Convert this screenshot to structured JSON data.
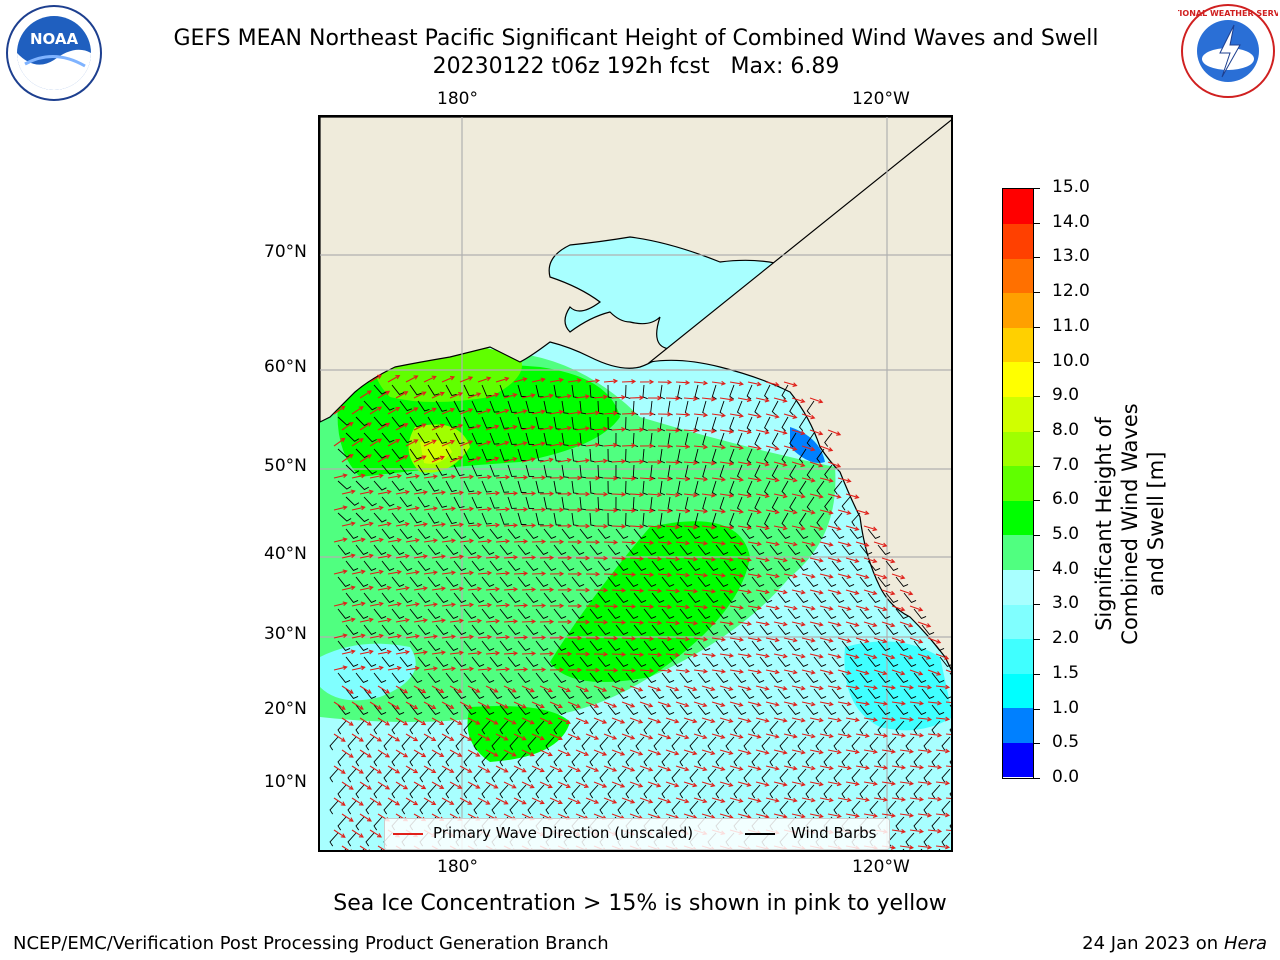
{
  "header": {
    "title_line1": "GEFS MEAN Northeast Pacific Significant Height of Combined Wind Waves and Swell",
    "title_line2": "20230122 t06z 192h fcst   Max: 6.89",
    "left_logo": "NOAA",
    "right_logo": "NATIONAL WEATHER SERVICE"
  },
  "map": {
    "lon_ticks_top": [
      "180°",
      "120°W"
    ],
    "lon_ticks_bottom": [
      "180°",
      "120°W"
    ],
    "lat_ticks": [
      "70°N",
      "60°N",
      "50°N",
      "40°N",
      "30°N",
      "20°N",
      "10°N"
    ],
    "colors": {
      "land": "#efebdb",
      "coast": "#000000",
      "grid": "#b0b0b0",
      "wave_arrow": "#e0201a",
      "wind_barb": "#000000"
    }
  },
  "colorbar": {
    "label": "Significant Height of Combined Wind Waves and Swell [m]",
    "ticks": [
      "0.0",
      "0.5",
      "1.0",
      "1.5",
      "2.0",
      "3.0",
      "4.0",
      "5.0",
      "6.0",
      "7.0",
      "8.0",
      "9.0",
      "10.0",
      "11.0",
      "12.0",
      "13.0",
      "14.0",
      "15.0"
    ],
    "colors": [
      "#0000ff",
      "#0080ff",
      "#00ffff",
      "#40ffff",
      "#80ffff",
      "#a8ffff",
      "#50ff80",
      "#00ff00",
      "#60ff00",
      "#a0ff00",
      "#d0ff00",
      "#ffff00",
      "#ffd000",
      "#ffa000",
      "#ff7000",
      "#ff4000",
      "#ff0000"
    ]
  },
  "legend": {
    "wave_direction": "Primary Wave Direction (unscaled)",
    "wind_barbs": "Wind Barbs"
  },
  "notes": {
    "sea_ice": "Sea Ice Concentration > 15% is shown in pink to yellow"
  },
  "footer": {
    "left": "NCEP/EMC/Verification Post Processing Product Generation Branch",
    "right_prefix": "24 Jan 2023 on ",
    "right_host": "Hera"
  }
}
